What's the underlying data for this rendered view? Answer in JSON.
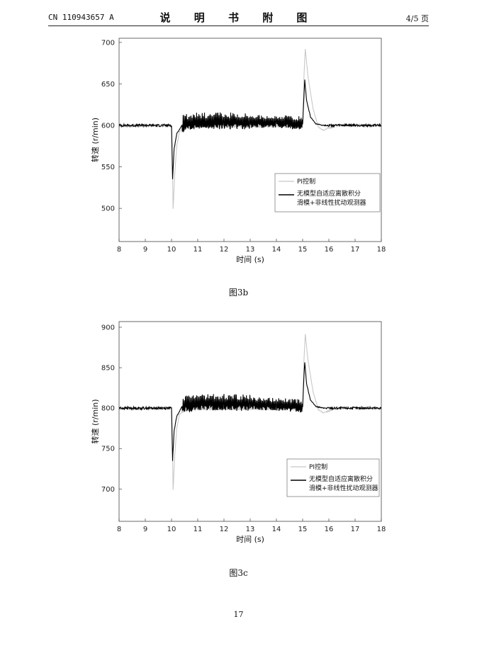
{
  "header": {
    "left": "CN 110943657 A",
    "center": "说 明 书 附 图",
    "right": "4/5 页"
  },
  "page_number": "17",
  "colors": {
    "pi": "#c8c8c8",
    "proposed": "#000000"
  },
  "chart_data": [
    {
      "type": "line",
      "caption": "图3b",
      "xlabel": "时间 (s)",
      "ylabel": "转速 (r/min)",
      "xlim": [
        8,
        18
      ],
      "ylim": [
        460,
        705
      ],
      "xticks": [
        8,
        9,
        10,
        11,
        12,
        13,
        14,
        15,
        16,
        17,
        18
      ],
      "yticks": [
        500,
        550,
        600,
        650,
        700
      ],
      "legend_position": "center-right",
      "grid": false,
      "series": [
        {
          "name": "PI控制",
          "color": "#c8c8c8",
          "points": [
            [
              8,
              600
            ],
            [
              10,
              600
            ],
            [
              10.03,
              560
            ],
            [
              10.06,
              499
            ],
            [
              10.12,
              540
            ],
            [
              10.2,
              575
            ],
            [
              10.3,
              592
            ],
            [
              10.5,
              598
            ],
            [
              11,
              600
            ],
            [
              12,
              600
            ],
            [
              13,
              600
            ],
            [
              14,
              600
            ],
            [
              15,
              600
            ],
            [
              15.05,
              660
            ],
            [
              15.1,
              692
            ],
            [
              15.2,
              660
            ],
            [
              15.4,
              620
            ],
            [
              15.6,
              598
            ],
            [
              15.8,
              594
            ],
            [
              16,
              597
            ],
            [
              16.3,
              600
            ],
            [
              18,
              600
            ]
          ]
        },
        {
          "name": "无模型自适应离散积分滑模+非线性扰动观测器",
          "color": "#000000",
          "points": [
            [
              8,
              600
            ],
            [
              10,
              600
            ],
            [
              10.02,
              570
            ],
            [
              10.04,
              535
            ],
            [
              10.1,
              572
            ],
            [
              10.2,
              590
            ],
            [
              10.4,
              600
            ],
            [
              11,
              603
            ],
            [
              12,
              603
            ],
            [
              13,
              603
            ],
            [
              14,
              603
            ],
            [
              15,
              601
            ],
            [
              15.05,
              635
            ],
            [
              15.08,
              655
            ],
            [
              15.15,
              630
            ],
            [
              15.3,
              610
            ],
            [
              15.5,
              602
            ],
            [
              15.8,
              600
            ],
            [
              18,
              600
            ]
          ]
        }
      ]
    },
    {
      "type": "line",
      "caption": "图3c",
      "xlabel": "时间 (s)",
      "ylabel": "转速 (r/min)",
      "xlim": [
        8,
        18
      ],
      "ylim": [
        660,
        907
      ],
      "xticks": [
        8,
        9,
        10,
        11,
        12,
        13,
        14,
        15,
        16,
        17,
        18
      ],
      "yticks": [
        700,
        750,
        800,
        850,
        900
      ],
      "legend_position": "lower-right",
      "grid": false,
      "series": [
        {
          "name": "PI控制",
          "color": "#c8c8c8",
          "points": [
            [
              8,
              800
            ],
            [
              10,
              800
            ],
            [
              10.03,
              760
            ],
            [
              10.06,
              699
            ],
            [
              10.12,
              740
            ],
            [
              10.2,
              775
            ],
            [
              10.3,
              792
            ],
            [
              10.5,
              798
            ],
            [
              11,
              800
            ],
            [
              12,
              800
            ],
            [
              13,
              800
            ],
            [
              14,
              800
            ],
            [
              15,
              800
            ],
            [
              15.05,
              860
            ],
            [
              15.1,
              892
            ],
            [
              15.2,
              860
            ],
            [
              15.4,
              820
            ],
            [
              15.6,
              798
            ],
            [
              15.8,
              794
            ],
            [
              16,
              797
            ],
            [
              16.3,
              800
            ],
            [
              18,
              800
            ]
          ]
        },
        {
          "name": "无模型自适应离散积分滑模+非线性扰动观测器",
          "color": "#000000",
          "points": [
            [
              8,
              800
            ],
            [
              10,
              800
            ],
            [
              10.02,
              770
            ],
            [
              10.04,
              735
            ],
            [
              10.1,
              772
            ],
            [
              10.2,
              790
            ],
            [
              10.4,
              802
            ],
            [
              11,
              805
            ],
            [
              12,
              805
            ],
            [
              13,
              804
            ],
            [
              14,
              803
            ],
            [
              15,
              801
            ],
            [
              15.05,
              840
            ],
            [
              15.08,
              857
            ],
            [
              15.15,
              830
            ],
            [
              15.3,
              810
            ],
            [
              15.5,
              802
            ],
            [
              15.8,
              800
            ],
            [
              18,
              800
            ]
          ]
        }
      ]
    }
  ]
}
